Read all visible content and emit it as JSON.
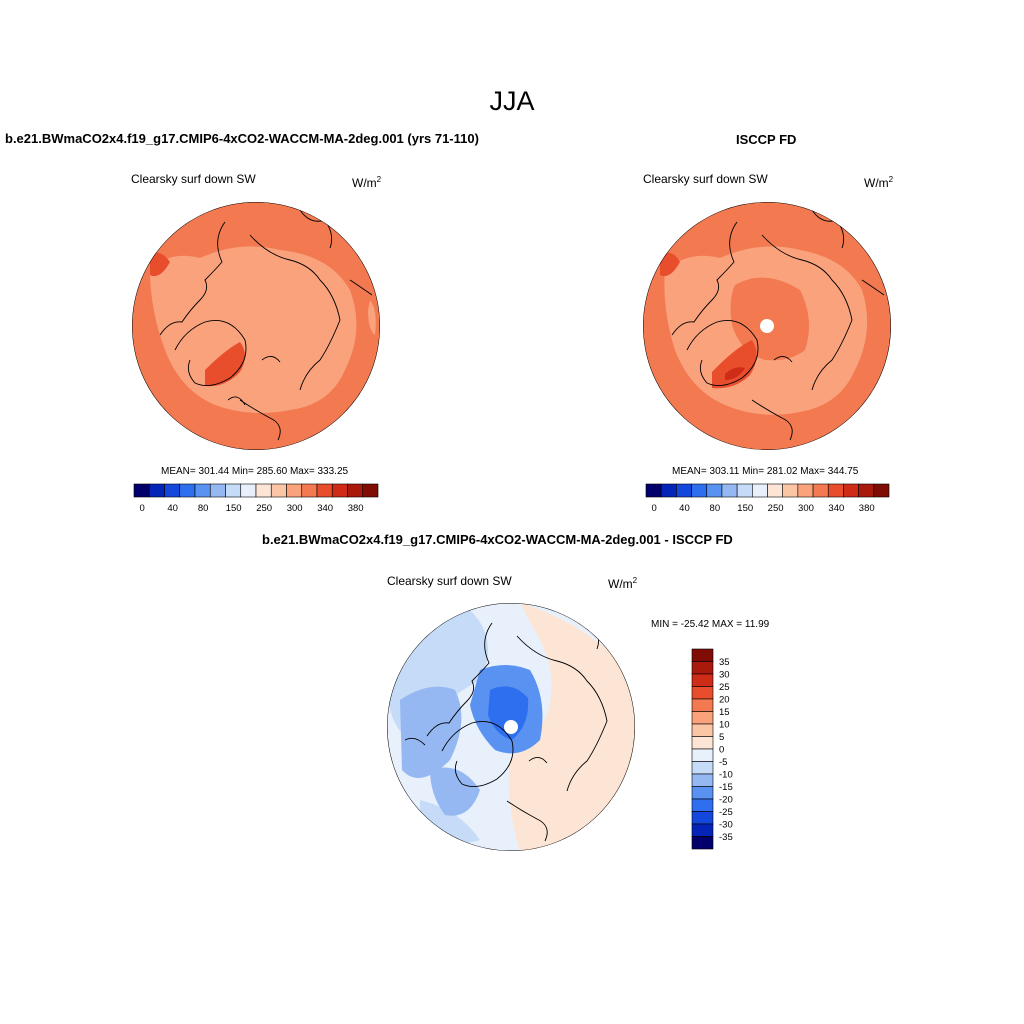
{
  "title": "JJA",
  "panels": [
    {
      "case_title": "b.e21.BWmaCO2x4.f19_g17.CMIP6-4xCO2-WACCM-MA-2deg.001 (yrs 71-110)",
      "variable": "Clearsky surf down SW",
      "unit_base": "W/m",
      "unit_exp": "2",
      "stats": "MEAN= 301.44  Min= 285.60  Max= 333.25",
      "colorbar_ticks": [
        "0",
        "40",
        "80",
        "150",
        "250",
        "300",
        "340",
        "380"
      ]
    },
    {
      "case_title": "ISCCP FD",
      "variable": "Clearsky surf down SW",
      "unit_base": "W/m",
      "unit_exp": "2",
      "stats": "MEAN= 303.11  Min= 281.02  Max= 344.75",
      "colorbar_ticks": [
        "0",
        "40",
        "80",
        "150",
        "250",
        "300",
        "340",
        "380"
      ]
    }
  ],
  "diff": {
    "case_title": "b.e21.BWmaCO2x4.f19_g17.CMIP6-4xCO2-WACCM-MA-2deg.001 - ISCCP FD",
    "variable": "Clearsky surf down SW",
    "unit_base": "W/m",
    "unit_exp": "2",
    "stats": "MIN = -25.42 MAX =  11.99",
    "colorbar_ticks": [
      "35",
      "30",
      "25",
      "20",
      "15",
      "10",
      "5",
      "0",
      "-5",
      "-10",
      "-15",
      "-20",
      "-25",
      "-30",
      "-35"
    ]
  },
  "colors": {
    "abs_scale": [
      "#03006b",
      "#0524b8",
      "#1447dc",
      "#2e6ff0",
      "#5a92f2",
      "#95b8f2",
      "#c6dbf7",
      "#e8f0fb",
      "#fde5d6",
      "#fbc6a6",
      "#f9a27c",
      "#f27950",
      "#e84e2c",
      "#cf2c18",
      "#a91a0d",
      "#7f0d06"
    ],
    "diff_scale": [
      "#03006b",
      "#0524b8",
      "#1447dc",
      "#2e6ff0",
      "#5a92f2",
      "#95b8f2",
      "#c6dbf7",
      "#e8f0fb",
      "#fde5d6",
      "#fbc6a6",
      "#f9a27c",
      "#f27950",
      "#e84e2c",
      "#cf2c18",
      "#a91a0d",
      "#7f0d06"
    ]
  }
}
